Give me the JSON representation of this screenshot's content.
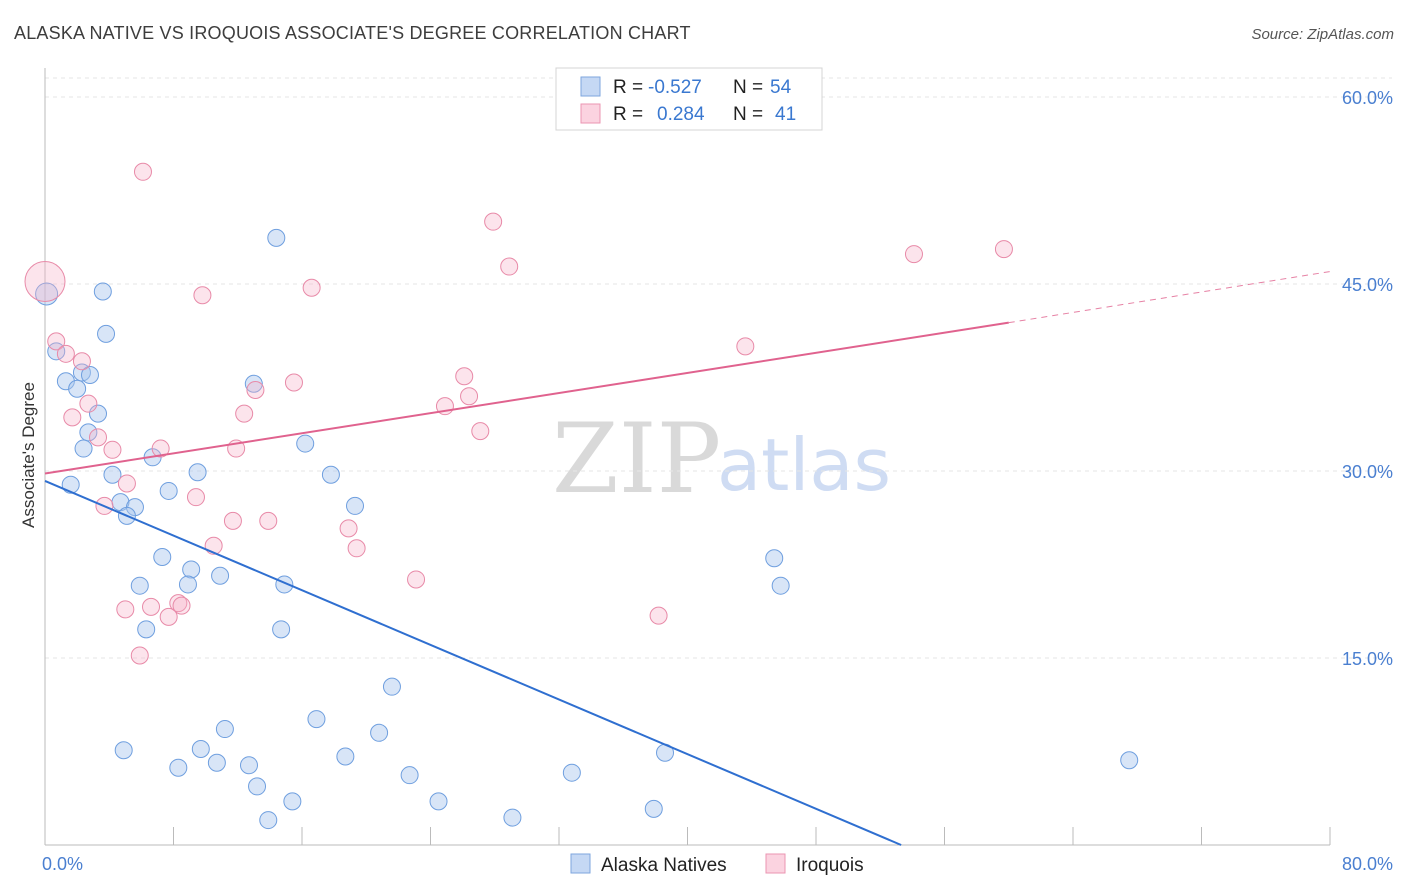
{
  "header": {
    "title": "ALASKA NATIVE VS IROQUOIS ASSOCIATE'S DEGREE CORRELATION CHART",
    "source": "Source: ZipAtlas.com"
  },
  "watermark": {
    "zip": "ZIP",
    "atlas": "atlas"
  },
  "legend_box": {
    "rows": [
      {
        "r_label": "R =",
        "r_value": "-0.527",
        "n_label": "N =",
        "n_value": "54",
        "color": "#a9c6ee"
      },
      {
        "r_label": "R =",
        "r_value": "0.284",
        "n_label": "N =",
        "n_value": "41",
        "color": "#f5b3c8"
      }
    ]
  },
  "bottom_legend": {
    "items": [
      {
        "label": "Alaska Natives",
        "color": "#a9c6ee"
      },
      {
        "label": "Iroquois",
        "color": "#f5b3c8"
      }
    ]
  },
  "colors": {
    "blue_fill": "rgba(169,198,238,0.45)",
    "blue_stroke": "#6f9fdf",
    "blue_line": "#2f6fd0",
    "pink_fill": "rgba(245,179,200,0.35)",
    "pink_stroke": "#e88aa8",
    "pink_line": "#e0628e",
    "grid": "#e6e6e6",
    "tick_text": "#4a7fd0"
  },
  "chart_data": {
    "type": "scatter",
    "title": "ALASKA NATIVE VS IROQUOIS ASSOCIATE'S DEGREE CORRELATION CHART",
    "xlabel": "",
    "ylabel": "Associate's Degree",
    "xlim": [
      0,
      80
    ],
    "ylim": [
      0,
      60
    ],
    "x_tick_labels": [
      "0.0%",
      "80.0%"
    ],
    "y_ticks": [
      15,
      30,
      45,
      60
    ],
    "y_tick_labels": [
      "15.0%",
      "30.0%",
      "45.0%",
      "60.0%"
    ],
    "grid": "horizontal dashed",
    "legend": "top-center",
    "series": [
      {
        "name": "Alaska Natives",
        "r": -0.527,
        "n": 54,
        "trend": {
          "x0": 0,
          "y0": 29.2,
          "x1": 53.3,
          "y1": 0
        },
        "points": [
          [
            0.1,
            44.2
          ],
          [
            3.6,
            44.4
          ],
          [
            0.7,
            39.6
          ],
          [
            1.3,
            37.2
          ],
          [
            2.3,
            37.9
          ],
          [
            3.8,
            41.0
          ],
          [
            2.8,
            37.7
          ],
          [
            2.0,
            36.6
          ],
          [
            3.3,
            34.6
          ],
          [
            2.7,
            33.1
          ],
          [
            14.4,
            48.7
          ],
          [
            13.0,
            37.0
          ],
          [
            16.2,
            32.2
          ],
          [
            6.7,
            31.1
          ],
          [
            9.5,
            29.9
          ],
          [
            17.8,
            29.7
          ],
          [
            4.2,
            29.7
          ],
          [
            7.7,
            28.4
          ],
          [
            4.7,
            27.5
          ],
          [
            5.6,
            27.1
          ],
          [
            19.3,
            27.2
          ],
          [
            5.1,
            26.4
          ],
          [
            7.3,
            23.1
          ],
          [
            9.1,
            22.1
          ],
          [
            10.9,
            21.6
          ],
          [
            5.9,
            20.8
          ],
          [
            8.9,
            20.9
          ],
          [
            14.9,
            20.9
          ],
          [
            45.4,
            23.0
          ],
          [
            45.8,
            20.8
          ],
          [
            6.3,
            17.3
          ],
          [
            14.7,
            17.3
          ],
          [
            21.6,
            12.7
          ],
          [
            16.9,
            10.1
          ],
          [
            11.2,
            9.3
          ],
          [
            20.8,
            9.0
          ],
          [
            4.9,
            7.6
          ],
          [
            9.7,
            7.7
          ],
          [
            18.7,
            7.1
          ],
          [
            38.6,
            7.4
          ],
          [
            67.5,
            6.8
          ],
          [
            8.3,
            6.2
          ],
          [
            10.7,
            6.6
          ],
          [
            12.7,
            6.4
          ],
          [
            22.7,
            5.6
          ],
          [
            32.8,
            5.8
          ],
          [
            13.2,
            4.7
          ],
          [
            15.4,
            3.5
          ],
          [
            24.5,
            3.5
          ],
          [
            37.9,
            2.9
          ],
          [
            13.9,
            2.0
          ],
          [
            29.1,
            2.2
          ],
          [
            1.6,
            28.9
          ],
          [
            2.4,
            31.8
          ]
        ]
      },
      {
        "name": "Iroquois",
        "r": 0.284,
        "n": 41,
        "trend": {
          "x0": 0,
          "y0": 29.8,
          "x1": 60,
          "y1": 41.9,
          "dash_to_x": 80,
          "dash_to_y": 46.0
        },
        "points": [
          [
            0.0,
            45.2
          ],
          [
            6.1,
            54.0
          ],
          [
            27.9,
            50.0
          ],
          [
            28.9,
            46.4
          ],
          [
            54.1,
            47.4
          ],
          [
            59.7,
            47.8
          ],
          [
            16.6,
            44.7
          ],
          [
            9.8,
            44.1
          ],
          [
            43.6,
            40.0
          ],
          [
            0.7,
            40.4
          ],
          [
            1.3,
            39.4
          ],
          [
            2.3,
            38.8
          ],
          [
            26.1,
            37.6
          ],
          [
            15.5,
            37.1
          ],
          [
            13.1,
            36.5
          ],
          [
            26.4,
            36.0
          ],
          [
            2.7,
            35.4
          ],
          [
            24.9,
            35.2
          ],
          [
            12.4,
            34.6
          ],
          [
            1.7,
            34.3
          ],
          [
            3.3,
            32.7
          ],
          [
            27.1,
            33.2
          ],
          [
            4.2,
            31.7
          ],
          [
            7.2,
            31.8
          ],
          [
            11.9,
            31.8
          ],
          [
            9.4,
            27.9
          ],
          [
            3.7,
            27.2
          ],
          [
            5.1,
            29.0
          ],
          [
            11.7,
            26.0
          ],
          [
            13.9,
            26.0
          ],
          [
            18.9,
            25.4
          ],
          [
            19.4,
            23.8
          ],
          [
            10.5,
            24.0
          ],
          [
            23.1,
            21.3
          ],
          [
            5.0,
            18.9
          ],
          [
            6.6,
            19.1
          ],
          [
            8.3,
            19.4
          ],
          [
            8.5,
            19.2
          ],
          [
            7.7,
            18.3
          ],
          [
            38.2,
            18.4
          ],
          [
            5.9,
            15.2
          ]
        ]
      }
    ]
  }
}
